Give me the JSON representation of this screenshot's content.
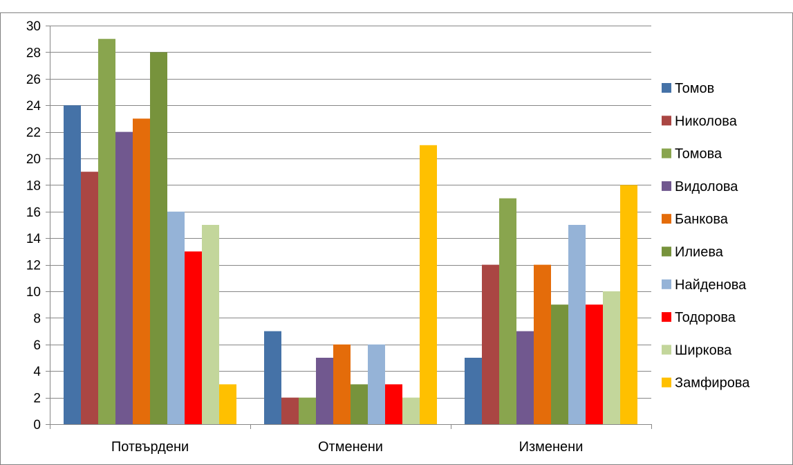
{
  "chart_data": {
    "type": "bar",
    "categories": [
      "Потвърдени",
      "Отменени",
      "Изменени"
    ],
    "series": [
      {
        "name": "Томов",
        "color": "#4572A7",
        "values": [
          24,
          7,
          5
        ]
      },
      {
        "name": "Николова",
        "color": "#AA4643",
        "values": [
          19,
          2,
          12
        ]
      },
      {
        "name": "Томова",
        "color": "#89A54E",
        "values": [
          29,
          2,
          17
        ]
      },
      {
        "name": "Видолова",
        "color": "#71588F",
        "values": [
          22,
          5,
          7
        ]
      },
      {
        "name": "Банкова",
        "color": "#E46C0A",
        "values": [
          23,
          6,
          12
        ]
      },
      {
        "name": "Илиева",
        "color": "#77933C",
        "values": [
          28,
          3,
          9
        ]
      },
      {
        "name": "Найденова",
        "color": "#95B3D7",
        "values": [
          16,
          6,
          15
        ]
      },
      {
        "name": "Тодорова",
        "color": "#FF0000",
        "values": [
          13,
          3,
          9
        ]
      },
      {
        "name": "Ширкова",
        "color": "#C3D69B",
        "values": [
          15,
          2,
          10
        ]
      },
      {
        "name": "Замфирова",
        "color": "#FFC000",
        "values": [
          3,
          21,
          18
        ]
      }
    ],
    "ylim": [
      0,
      30
    ],
    "yticks": [
      0,
      2,
      4,
      6,
      8,
      10,
      12,
      14,
      16,
      18,
      20,
      22,
      24,
      26,
      28,
      30
    ],
    "grid": true,
    "legend": "right"
  }
}
